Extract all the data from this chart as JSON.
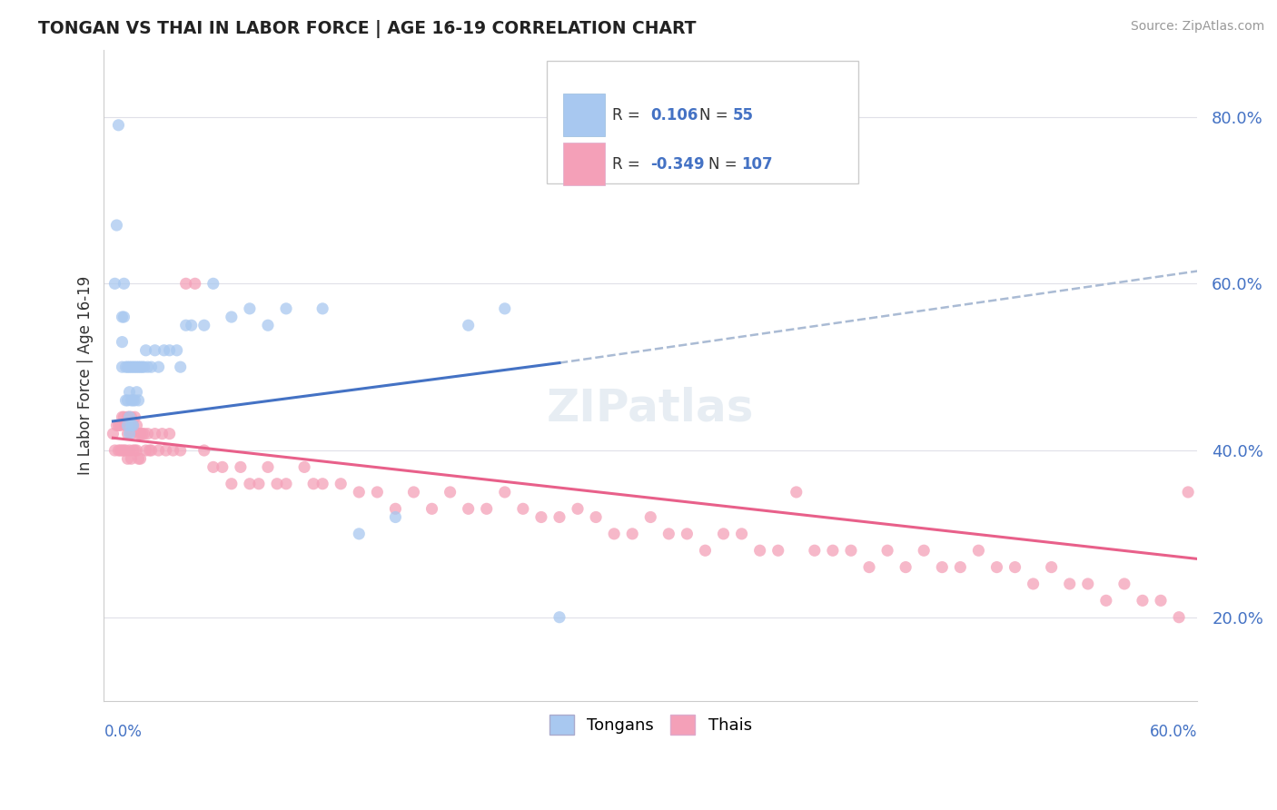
{
  "title": "TONGAN VS THAI IN LABOR FORCE | AGE 16-19 CORRELATION CHART",
  "source_text": "Source: ZipAtlas.com",
  "ylabel": "In Labor Force | Age 16-19",
  "xmin": 0.0,
  "xmax": 0.6,
  "ymin": 0.1,
  "ymax": 0.88,
  "color_tongan": "#a8c8f0",
  "color_thai": "#f4a0b8",
  "color_tongan_line": "#4472c4",
  "color_thai_line": "#e8608a",
  "color_dashed": "#aabbd4",
  "background_color": "#ffffff",
  "grid_color": "#e0e0e8",
  "marker_size": 90,
  "tongan_x": [
    0.008,
    0.007,
    0.006,
    0.01,
    0.01,
    0.01,
    0.011,
    0.011,
    0.012,
    0.012,
    0.013,
    0.013,
    0.013,
    0.014,
    0.014,
    0.014,
    0.014,
    0.015,
    0.015,
    0.015,
    0.016,
    0.016,
    0.016,
    0.017,
    0.017,
    0.018,
    0.018,
    0.019,
    0.019,
    0.02,
    0.021,
    0.022,
    0.023,
    0.024,
    0.026,
    0.028,
    0.03,
    0.033,
    0.036,
    0.04,
    0.042,
    0.045,
    0.048,
    0.055,
    0.06,
    0.07,
    0.08,
    0.09,
    0.1,
    0.12,
    0.14,
    0.16,
    0.2,
    0.22,
    0.25
  ],
  "tongan_y": [
    0.79,
    0.67,
    0.6,
    0.56,
    0.53,
    0.5,
    0.6,
    0.56,
    0.5,
    0.46,
    0.5,
    0.46,
    0.43,
    0.5,
    0.47,
    0.44,
    0.42,
    0.5,
    0.46,
    0.43,
    0.5,
    0.46,
    0.43,
    0.5,
    0.46,
    0.5,
    0.47,
    0.5,
    0.46,
    0.5,
    0.5,
    0.5,
    0.52,
    0.5,
    0.5,
    0.52,
    0.5,
    0.52,
    0.52,
    0.52,
    0.5,
    0.55,
    0.55,
    0.55,
    0.6,
    0.56,
    0.57,
    0.55,
    0.57,
    0.57,
    0.3,
    0.32,
    0.55,
    0.57,
    0.2
  ],
  "thai_x": [
    0.005,
    0.006,
    0.007,
    0.008,
    0.008,
    0.009,
    0.009,
    0.01,
    0.01,
    0.011,
    0.011,
    0.012,
    0.012,
    0.013,
    0.013,
    0.013,
    0.014,
    0.014,
    0.015,
    0.015,
    0.015,
    0.016,
    0.016,
    0.017,
    0.017,
    0.018,
    0.018,
    0.019,
    0.019,
    0.02,
    0.02,
    0.021,
    0.022,
    0.023,
    0.024,
    0.025,
    0.026,
    0.028,
    0.03,
    0.032,
    0.034,
    0.036,
    0.038,
    0.042,
    0.045,
    0.05,
    0.055,
    0.06,
    0.065,
    0.07,
    0.075,
    0.08,
    0.085,
    0.09,
    0.095,
    0.1,
    0.11,
    0.115,
    0.12,
    0.13,
    0.14,
    0.15,
    0.16,
    0.17,
    0.18,
    0.19,
    0.2,
    0.21,
    0.22,
    0.23,
    0.24,
    0.25,
    0.26,
    0.27,
    0.28,
    0.29,
    0.3,
    0.31,
    0.32,
    0.33,
    0.34,
    0.35,
    0.36,
    0.37,
    0.38,
    0.39,
    0.4,
    0.41,
    0.42,
    0.43,
    0.44,
    0.45,
    0.46,
    0.47,
    0.48,
    0.49,
    0.5,
    0.51,
    0.52,
    0.53,
    0.54,
    0.55,
    0.56,
    0.57,
    0.58,
    0.59,
    0.595
  ],
  "thai_y": [
    0.42,
    0.4,
    0.43,
    0.43,
    0.4,
    0.43,
    0.4,
    0.44,
    0.4,
    0.44,
    0.4,
    0.43,
    0.4,
    0.44,
    0.42,
    0.39,
    0.44,
    0.4,
    0.44,
    0.42,
    0.39,
    0.43,
    0.4,
    0.44,
    0.4,
    0.43,
    0.4,
    0.42,
    0.39,
    0.42,
    0.39,
    0.42,
    0.42,
    0.4,
    0.42,
    0.4,
    0.4,
    0.42,
    0.4,
    0.42,
    0.4,
    0.42,
    0.4,
    0.4,
    0.6,
    0.6,
    0.4,
    0.38,
    0.38,
    0.36,
    0.38,
    0.36,
    0.36,
    0.38,
    0.36,
    0.36,
    0.38,
    0.36,
    0.36,
    0.36,
    0.35,
    0.35,
    0.33,
    0.35,
    0.33,
    0.35,
    0.33,
    0.33,
    0.35,
    0.33,
    0.32,
    0.32,
    0.33,
    0.32,
    0.3,
    0.3,
    0.32,
    0.3,
    0.3,
    0.28,
    0.3,
    0.3,
    0.28,
    0.28,
    0.35,
    0.28,
    0.28,
    0.28,
    0.26,
    0.28,
    0.26,
    0.28,
    0.26,
    0.26,
    0.28,
    0.26,
    0.26,
    0.24,
    0.26,
    0.24,
    0.24,
    0.22,
    0.24,
    0.22,
    0.22,
    0.2,
    0.35
  ],
  "tongan_line_x": [
    0.005,
    0.25
  ],
  "tongan_line_y": [
    0.435,
    0.505
  ],
  "thai_line_x": [
    0.005,
    0.6
  ],
  "thai_line_y": [
    0.415,
    0.27
  ],
  "dash_line_x": [
    0.25,
    0.6
  ],
  "dash_line_y": [
    0.505,
    0.615
  ]
}
